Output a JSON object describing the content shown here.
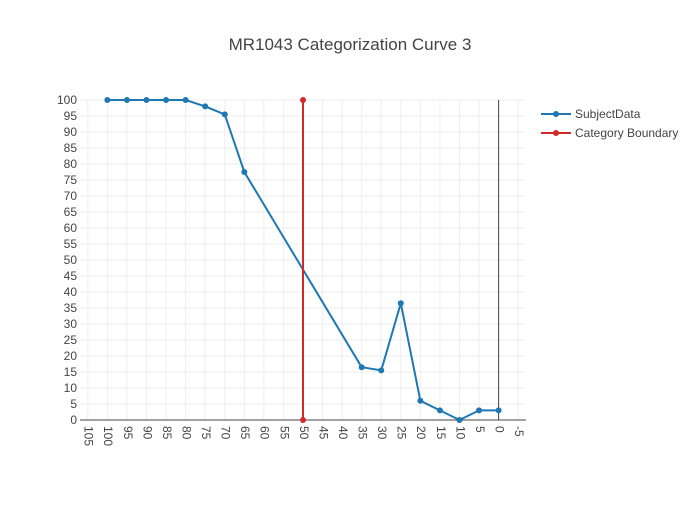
{
  "chart_data": {
    "type": "line",
    "title": "MR1043 Categorization Curve 3",
    "xlabel": "",
    "ylabel": "",
    "xlim": [
      107,
      -7
    ],
    "ylim": [
      0,
      100
    ],
    "x_reversed": true,
    "grid": true,
    "legend_position": "top-right",
    "x_ticks": [
      105,
      100,
      95,
      90,
      85,
      80,
      75,
      70,
      65,
      60,
      55,
      50,
      45,
      40,
      35,
      30,
      25,
      20,
      15,
      10,
      5,
      0,
      -5
    ],
    "y_ticks": [
      0,
      5,
      10,
      15,
      20,
      25,
      30,
      35,
      40,
      45,
      50,
      55,
      60,
      65,
      70,
      75,
      80,
      85,
      90,
      95,
      100
    ],
    "series": [
      {
        "name": "SubjectData",
        "color": "#1f77b4",
        "x": [
          100,
          95,
          90,
          85,
          80,
          75,
          70,
          65,
          35,
          30,
          25,
          20,
          15,
          10,
          5,
          0
        ],
        "y": [
          100,
          100,
          100,
          100,
          100,
          98,
          95.5,
          77.5,
          16.5,
          15.5,
          36.5,
          6,
          3,
          0,
          3,
          3
        ]
      },
      {
        "name": "Category Boundary",
        "color": "#d62728",
        "x": [
          50,
          50
        ],
        "y": [
          0,
          100
        ]
      }
    ]
  }
}
